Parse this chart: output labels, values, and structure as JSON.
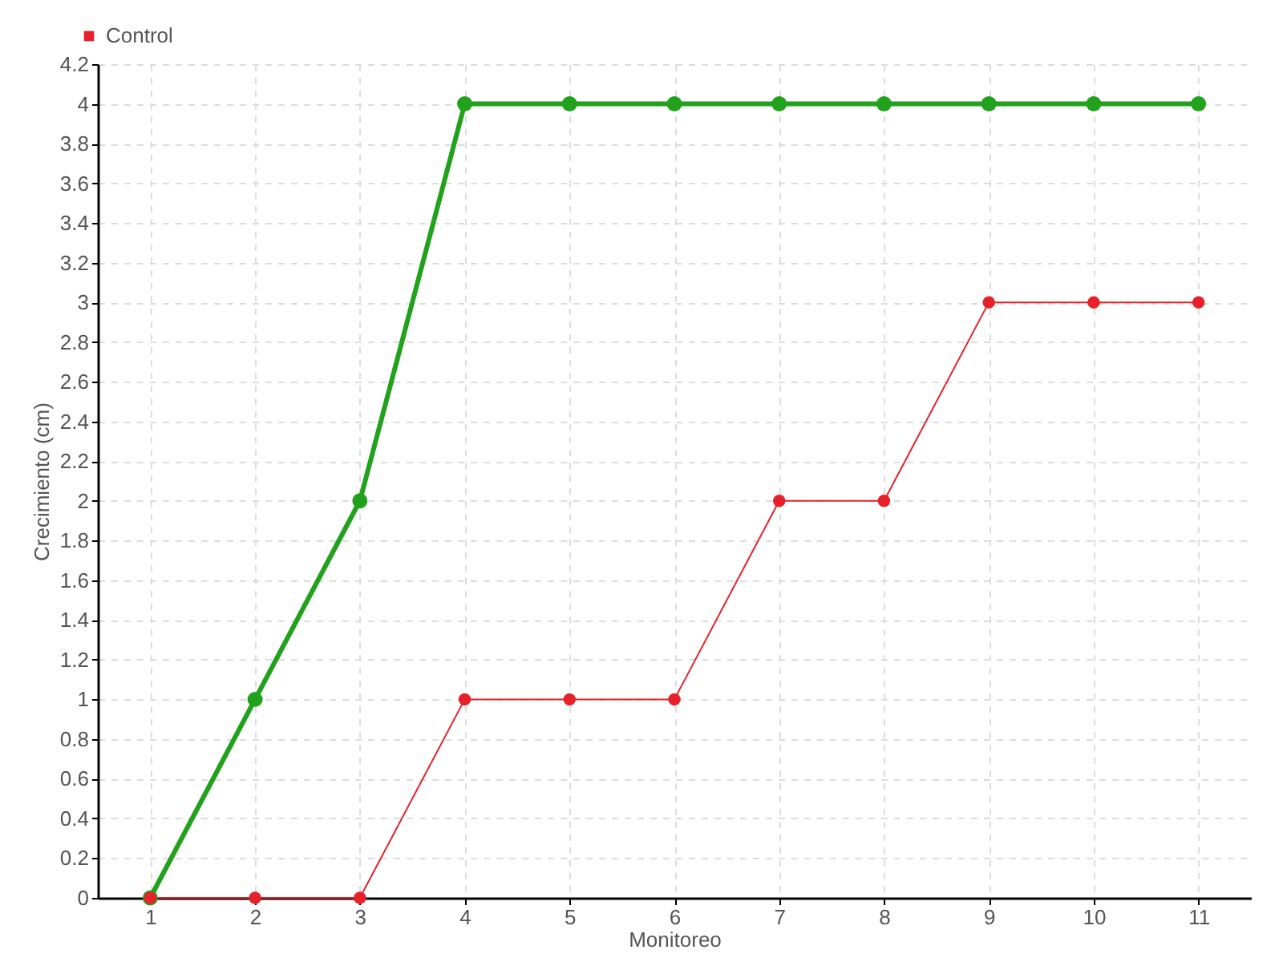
{
  "chart_data": {
    "type": "line",
    "xlabel": "Monitoreo",
    "ylabel": "Crecimiento (cm)",
    "categories": [
      "1",
      "2",
      "3",
      "4",
      "5",
      "6",
      "7",
      "8",
      "9",
      "10",
      "11"
    ],
    "series": [
      {
        "color": "#22a11c",
        "values": [
          0,
          1,
          2,
          4,
          4,
          4,
          4,
          4,
          4,
          4,
          4
        ]
      },
      {
        "name": "Control",
        "color": "#e8202a",
        "values": [
          0,
          0,
          0,
          1,
          1,
          1,
          2,
          2,
          3,
          3,
          3
        ]
      }
    ],
    "ylim": [
      0,
      4.2
    ],
    "yticks": [
      0,
      0.2,
      0.4,
      0.6,
      0.8,
      1,
      1.2,
      1.4,
      1.6,
      1.8,
      2,
      2.2,
      2.4,
      2.6,
      2.8,
      3,
      3.2,
      3.4,
      3.6,
      3.8,
      4,
      4.2
    ],
    "grid": true,
    "legend": "top left",
    "marker": "circle"
  }
}
